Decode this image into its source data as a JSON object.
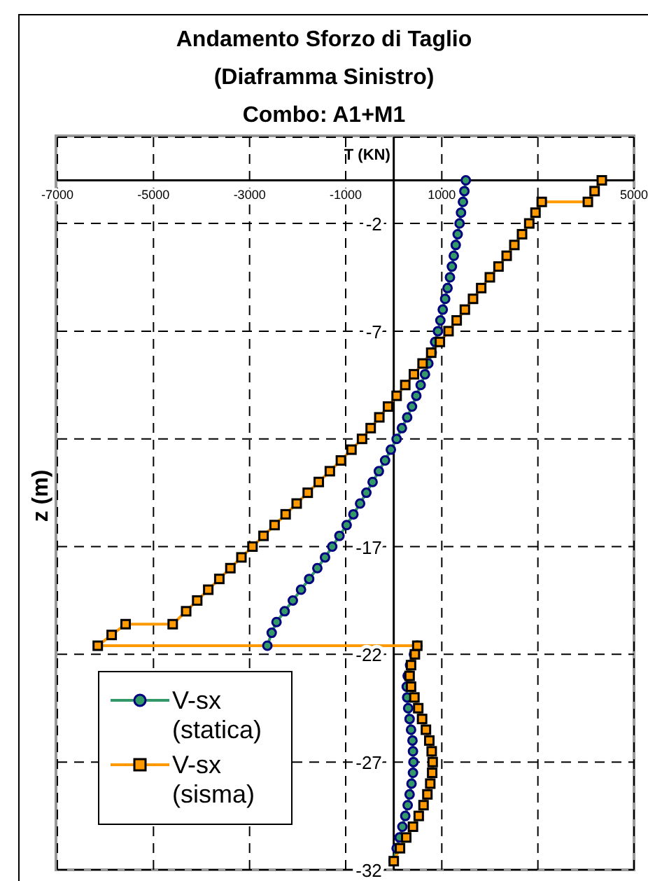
{
  "chart_data": {
    "type": "line",
    "title": "Andamento Sforzo di Taglio\n(Diaframma Sinistro)\nCombo: A1+M1",
    "xlabel": "T (KN)",
    "ylabel": "z (m)",
    "xlim": [
      -7000,
      5000
    ],
    "xticks": [
      -7000,
      -5000,
      -3000,
      -1000,
      1000,
      {
        "value": 3000,
        "label": null
      },
      5000
    ],
    "ylim": [
      -32,
      2
    ],
    "yticks": [
      -32,
      -27,
      -22,
      -17,
      {
        "value": -12,
        "label": null
      },
      -7,
      -2
    ],
    "grid": true,
    "legend": "bottom left",
    "line_style": "solid",
    "series": [
      {
        "name": "V-sx (statica)",
        "color": "#339966",
        "marker": "circle",
        "x": [
          1500,
          1470,
          1440,
          1400,
          1370,
          1330,
          1290,
          1250,
          1210,
          1170,
          1120,
          1070,
          1020,
          970,
          920,
          860,
          790,
          720,
          650,
          560,
          470,
          380,
          280,
          170,
          60,
          -60,
          -180,
          -310,
          -440,
          -570,
          -700,
          -840,
          -980,
          -1130,
          -1280,
          -1430,
          -1590,
          -1760,
          -1930,
          -2100,
          -2270,
          -2440,
          -2540,
          -2630,
          490,
          420,
          340,
          290,
          270,
          280,
          300,
          330,
          360,
          390,
          400,
          410,
          400,
          370,
          330,
          290,
          240,
          180,
          120,
          60,
          0
        ],
        "values": [
          0,
          -0.5,
          -1,
          -1.5,
          -2,
          -2.5,
          -3,
          -3.5,
          -4,
          -4.5,
          -5,
          -5.5,
          -6,
          -6.5,
          -7,
          -7.5,
          -8,
          -8.5,
          -9,
          -9.5,
          -10,
          -10.5,
          -11,
          -11.5,
          -12,
          -12.5,
          -13,
          -13.5,
          -14,
          -14.5,
          -15,
          -15.5,
          -16,
          -16.5,
          -17,
          -17.5,
          -18,
          -18.5,
          -19,
          -19.5,
          -20,
          -20.5,
          -21,
          -21.6,
          -21.6,
          -22,
          -22.5,
          -23,
          -23.5,
          -24,
          -24.5,
          -25,
          -25.5,
          -26,
          -26.5,
          -27,
          -27.5,
          -28,
          -28.5,
          -29,
          -29.5,
          -30,
          -30.5,
          -31,
          -31.6
        ]
      },
      {
        "name": "V-sx (sisma)",
        "color": "#ff9900",
        "marker": "square",
        "x": [
          4330,
          4180,
          4040,
          3080,
          2950,
          2820,
          2670,
          2510,
          2350,
          2180,
          2000,
          1820,
          1650,
          1480,
          1310,
          1140,
          960,
          780,
          600,
          420,
          240,
          60,
          -120,
          -300,
          -480,
          -660,
          -880,
          -1100,
          -1330,
          -1560,
          -1790,
          -2020,
          -2250,
          -2480,
          -2710,
          -2940,
          -3170,
          -3400,
          -3630,
          -3860,
          -4090,
          -4320,
          -4600,
          -5580,
          -5870,
          -6160,
          490,
          440,
          360,
          330,
          360,
          430,
          510,
          590,
          670,
          740,
          790,
          810,
          800,
          760,
          700,
          620,
          520,
          400,
          260,
          130,
          0
        ],
        "values": [
          0,
          -0.5,
          -1,
          -1,
          -1.5,
          -2,
          -2.5,
          -3,
          -3.5,
          -4,
          -4.5,
          -5,
          -5.5,
          -6,
          -6.5,
          -7,
          -7.5,
          -8,
          -8.5,
          -9,
          -9.5,
          -10,
          -10.5,
          -11,
          -11.5,
          -12,
          -12.5,
          -13,
          -13.5,
          -14,
          -14.5,
          -15,
          -15.5,
          -16,
          -16.5,
          -17,
          -17.5,
          -18,
          -18.5,
          -19,
          -19.5,
          -20,
          -20.6,
          -20.6,
          -21.1,
          -21.6,
          -21.6,
          -22,
          -22.5,
          -23,
          -23.5,
          -24,
          -24.5,
          -25,
          -25.5,
          -26,
          -26.5,
          -27,
          -27.5,
          -28,
          -28.5,
          -29,
          -29.5,
          -30,
          -30.5,
          -31,
          -31.6
        ]
      }
    ]
  }
}
